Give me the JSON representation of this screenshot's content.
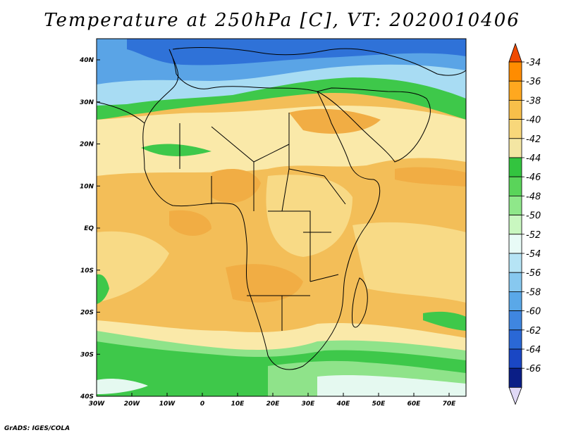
{
  "title": "Temperature at 250hPa [C], VT: 2020010406",
  "credit": "GrADS: IGES/COLA",
  "map": {
    "lat_labels": [
      "40N",
      "30N",
      "20N",
      "10N",
      "EQ",
      "10S",
      "20S",
      "30S",
      "40S"
    ],
    "lon_labels": [
      "30W",
      "20W",
      "10W",
      "0",
      "10E",
      "20E",
      "30E",
      "40E",
      "50E",
      "60E",
      "70E"
    ]
  },
  "colorbar": {
    "levels": [
      "-34",
      "-36",
      "-38",
      "-40",
      "-42",
      "-44",
      "-46",
      "-48",
      "-50",
      "-52",
      "-54",
      "-56",
      "-58",
      "-60",
      "-62",
      "-64",
      "-66"
    ],
    "colors": {
      "top_arrow": "#f04a00",
      "bands": [
        "#ff8c00",
        "#ffa81f",
        "#f8bf4a",
        "#f8d77a",
        "#f4e6a3",
        "#33c43f",
        "#5ad45a",
        "#8fe78a",
        "#c9f7c0",
        "#e8fbf6",
        "#b6e4f5",
        "#87c8ef",
        "#5aa8e8",
        "#3f86e0",
        "#2a68d6",
        "#1a47c4",
        "#0a1e86"
      ],
      "bottom_arrow": "#e0d9f6"
    }
  },
  "field_colors": {
    "warm": "#f3be58",
    "warmer": "#f1ad44",
    "mid": "#f8da86",
    "cool": "#fae9a9",
    "green": "#3ec84a",
    "lightgreen": "#8fe38a",
    "pale": "#e5f9f0",
    "lightblue": "#a8dcf3",
    "blue": "#5aa4e6",
    "deepblue": "#2f72d8"
  }
}
